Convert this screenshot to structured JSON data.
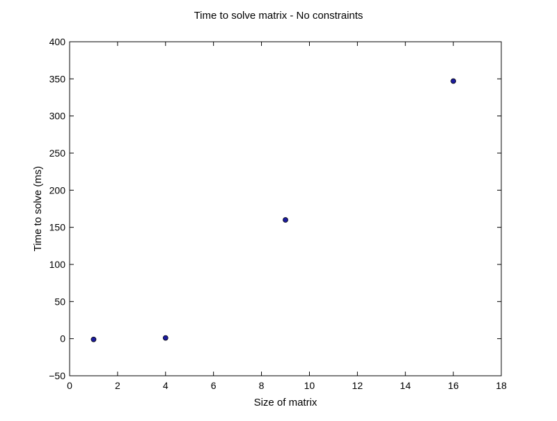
{
  "chart_data": {
    "type": "scatter",
    "title": "Time to solve matrix - No constraints",
    "xlabel": "Size of matrix",
    "ylabel": "Time to solve (ms)",
    "xlim": [
      0,
      18
    ],
    "ylim": [
      -50,
      400
    ],
    "xticks": [
      0,
      2,
      4,
      6,
      8,
      10,
      12,
      14,
      16,
      18
    ],
    "yticks": [
      -50,
      0,
      50,
      100,
      150,
      200,
      250,
      300,
      350,
      400
    ],
    "grid": false,
    "legend": "none",
    "series": [
      {
        "color": "#1c1c9e",
        "x": [
          1,
          4,
          9,
          16
        ],
        "y": [
          -1,
          1,
          160,
          347
        ]
      }
    ]
  }
}
